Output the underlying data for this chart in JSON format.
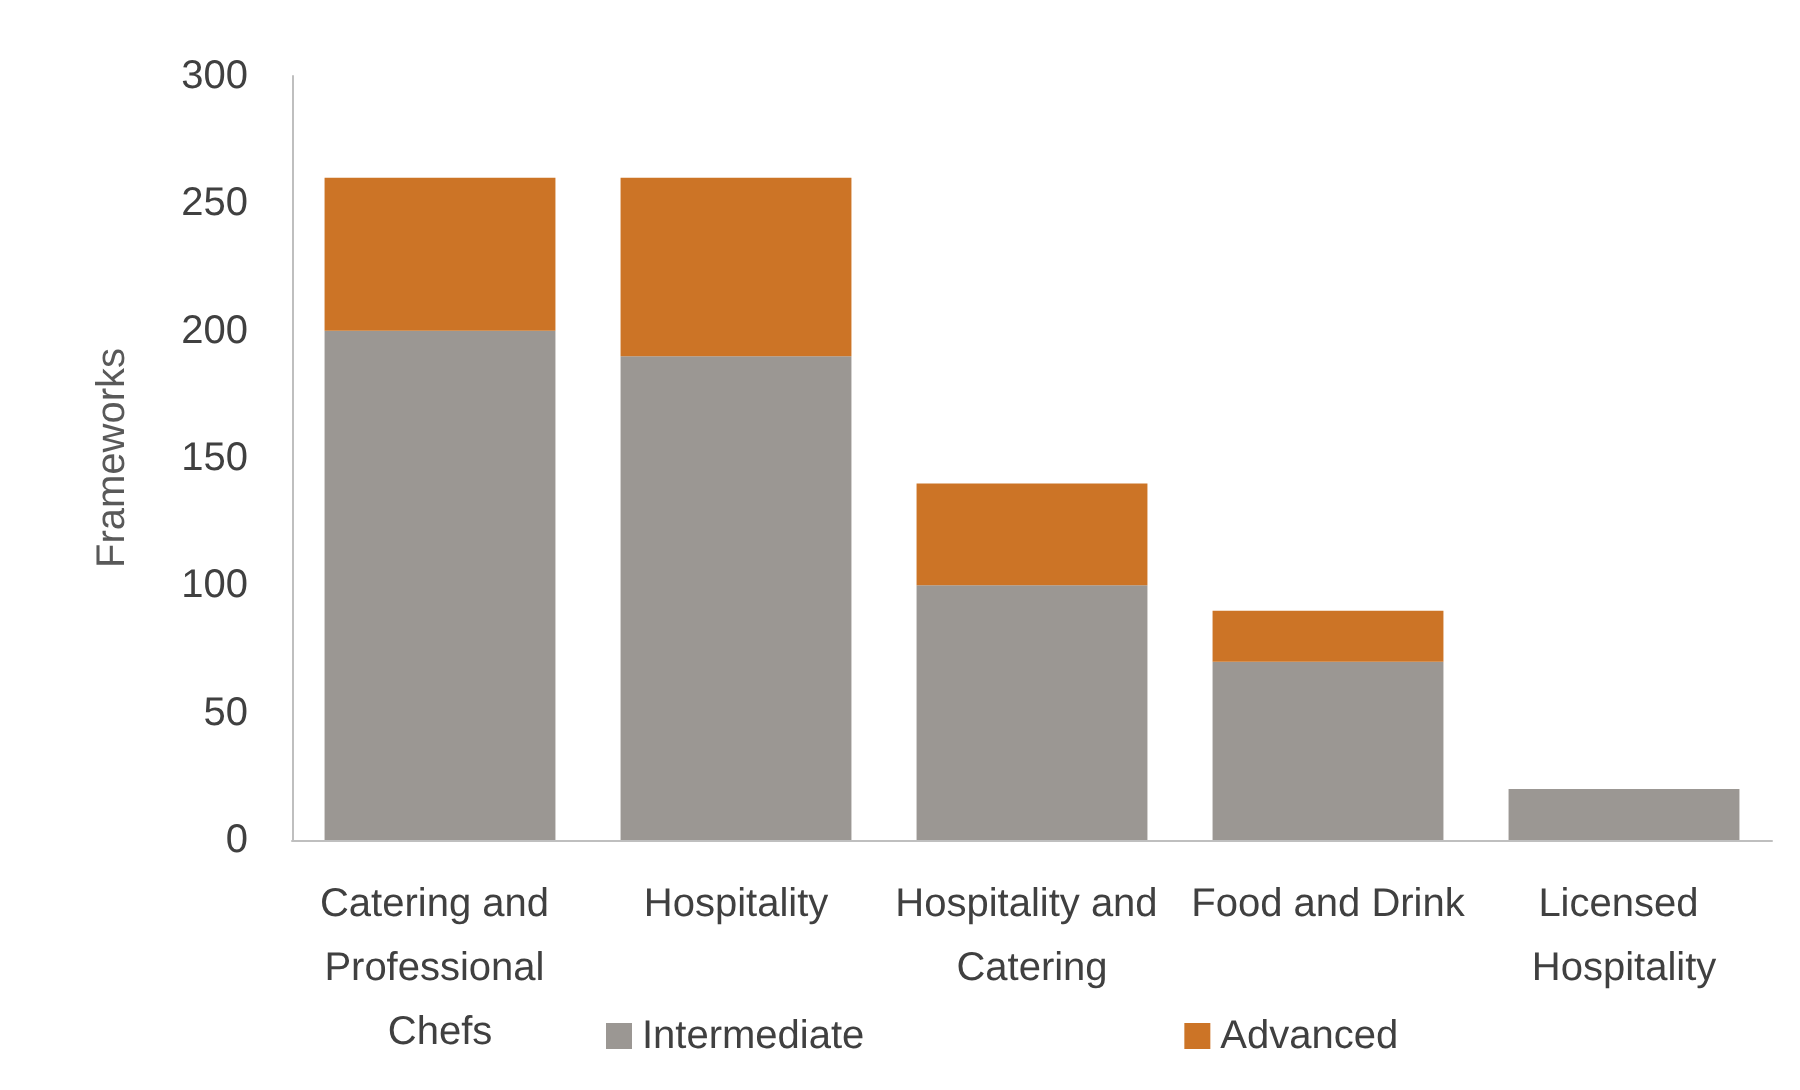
{
  "chart_data": {
    "type": "bar",
    "ylabel": "Frameworks",
    "stacked": true,
    "categories": [
      "Catering and Professional Chefs",
      "Hospitality",
      "Hospitality and Catering",
      "Food and Drink",
      "Licensed Hospitality"
    ],
    "series": [
      {
        "name": "Intermediate",
        "color": "#9b9793",
        "values": [
          200,
          190,
          100,
          70,
          20
        ]
      },
      {
        "name": "Advanced",
        "color": "#cc7426",
        "values": [
          60,
          70,
          40,
          20,
          0
        ]
      }
    ],
    "ylim": [
      0,
      300
    ],
    "yticks": [
      0,
      50,
      100,
      150,
      200,
      250,
      300
    ],
    "grid": false,
    "legend": "bottom"
  }
}
